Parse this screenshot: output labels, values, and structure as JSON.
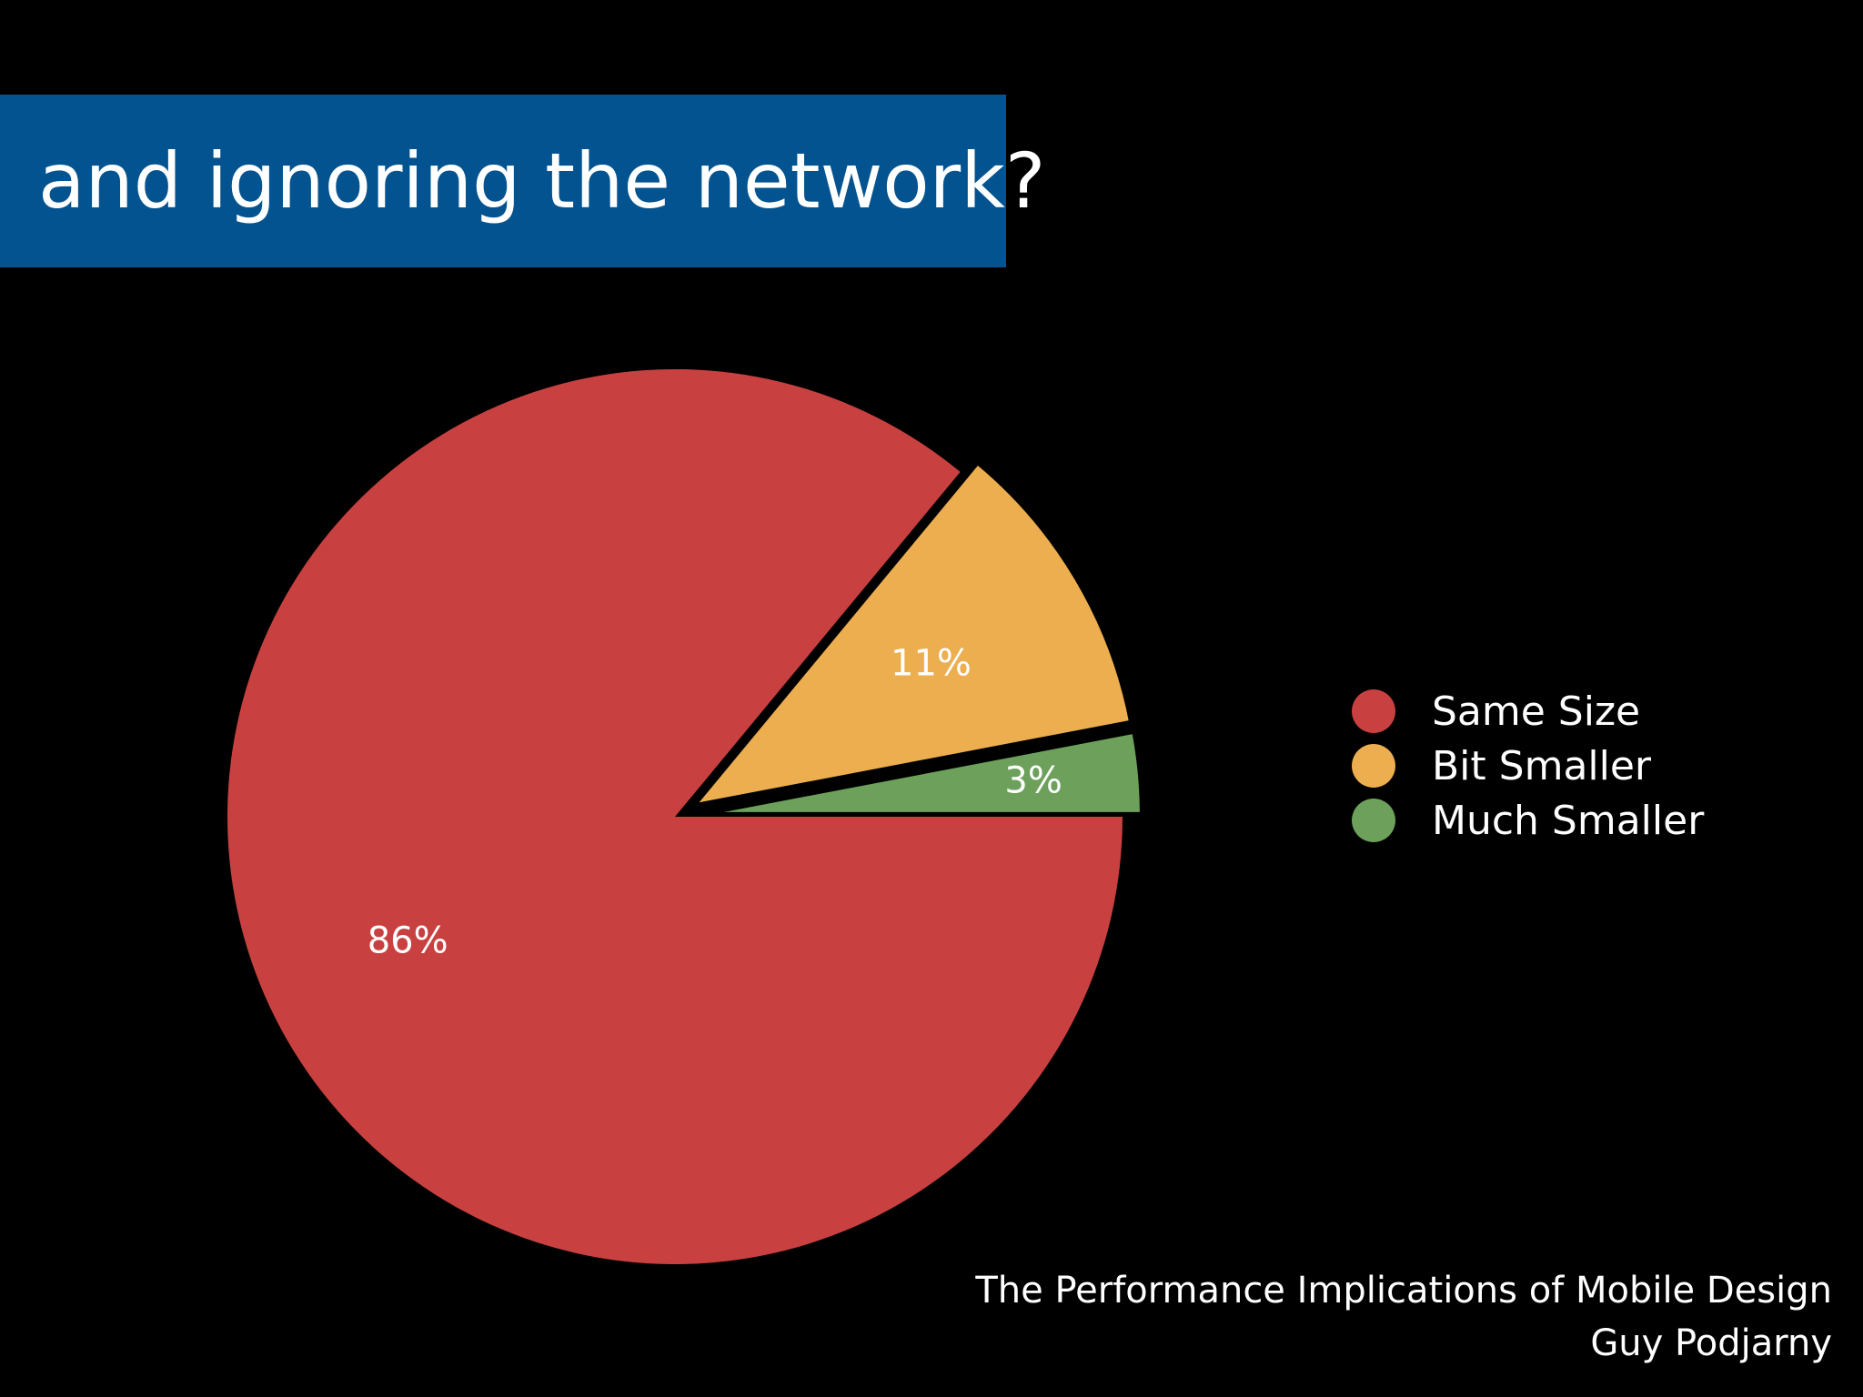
{
  "slide": {
    "title": "and ignoring the network?",
    "footer_line1": "The Performance Implications of Mobile Design",
    "footer_line2": "Guy Podjarny"
  },
  "chart_data": {
    "type": "pie",
    "title": "",
    "legend_position": "right",
    "slices": [
      {
        "label": "Same Size",
        "value": 86,
        "display": "86%",
        "color": "#c84140",
        "exploded": false
      },
      {
        "label": "Bit Smaller",
        "value": 11,
        "display": "11%",
        "color": "#ecae4f",
        "exploded": true
      },
      {
        "label": "Much Smaller",
        "value": 3,
        "display": "3%",
        "color": "#6da05b",
        "exploded": true
      }
    ]
  }
}
